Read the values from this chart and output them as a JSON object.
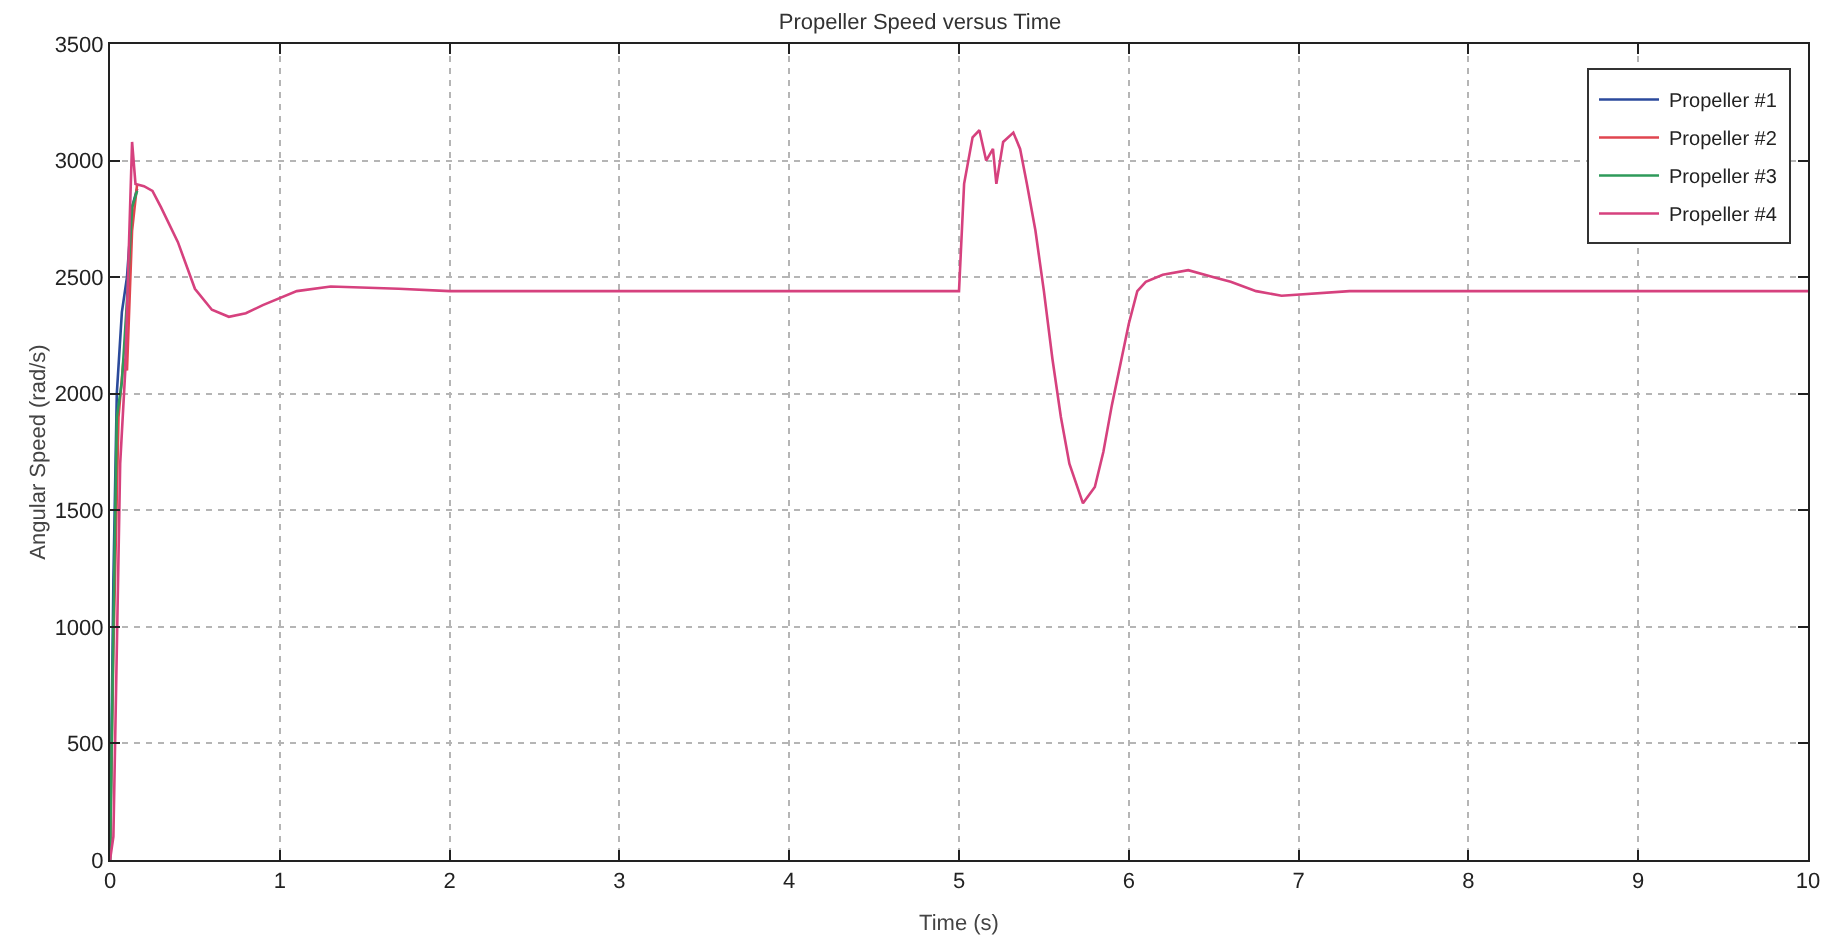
{
  "chart_data": {
    "type": "line",
    "title": "Propeller Speed versus Time",
    "xlabel": "Time (s)",
    "ylabel": "Angular Speed (rad/s)",
    "xlim": [
      0,
      10
    ],
    "xticks": [
      0,
      1,
      2,
      3,
      4,
      5,
      6,
      7,
      8,
      9,
      10
    ],
    "ylim": [
      0,
      3500
    ],
    "yticks": [
      0,
      500,
      1000,
      1500,
      2000,
      2500,
      3000,
      3500
    ],
    "grid": true,
    "legend": "top right",
    "marker": "none",
    "line_style": "solid",
    "series": [
      {
        "name": "Propeller #1",
        "color": "#2b4a9c",
        "x": [
          0,
          0.02,
          0.04,
          0.07,
          0.1,
          0.13,
          0.16
        ],
        "values": [
          0,
          1200,
          2000,
          2350,
          2500,
          2800,
          2880
        ]
      },
      {
        "name": "Propeller #2",
        "color": "#e0454f",
        "x": [
          0,
          0.02,
          0.05,
          0.08,
          0.1,
          0.13,
          0.16
        ],
        "values": [
          0,
          900,
          1900,
          2150,
          2100,
          2700,
          2900
        ]
      },
      {
        "name": "Propeller #3",
        "color": "#2e9a5a",
        "x": [
          0,
          0.02,
          0.04,
          0.07,
          0.1,
          0.13,
          0.16
        ],
        "values": [
          0,
          1000,
          1900,
          2050,
          2400,
          2800,
          2870
        ]
      },
      {
        "name": "Propeller #4",
        "color": "#d6417e",
        "x": [
          0,
          0.02,
          0.04,
          0.06,
          0.09,
          0.11,
          0.13,
          0.15,
          0.2,
          0.25,
          0.3,
          0.4,
          0.5,
          0.6,
          0.7,
          0.8,
          0.9,
          1.1,
          1.3,
          1.7,
          2,
          5,
          5.03,
          5.08,
          5.12,
          5.16,
          5.2,
          5.22,
          5.26,
          5.32,
          5.36,
          5.4,
          5.45,
          5.5,
          5.55,
          5.6,
          5.65,
          5.73,
          5.8,
          5.85,
          5.9,
          6.0,
          6.05,
          6.1,
          6.2,
          6.35,
          6.5,
          6.6,
          6.75,
          6.9,
          7.3,
          10
        ],
        "values": [
          0,
          100,
          900,
          1700,
          2100,
          2600,
          3080,
          2900,
          2890,
          2870,
          2800,
          2650,
          2450,
          2360,
          2330,
          2345,
          2380,
          2440,
          2460,
          2450,
          2440,
          2440,
          2900,
          3100,
          3130,
          3000,
          3050,
          2900,
          3080,
          3120,
          3050,
          2900,
          2700,
          2440,
          2150,
          1900,
          1700,
          1530,
          1600,
          1750,
          1950,
          2300,
          2440,
          2480,
          2510,
          2530,
          2500,
          2480,
          2440,
          2420,
          2440,
          2440
        ]
      }
    ]
  }
}
